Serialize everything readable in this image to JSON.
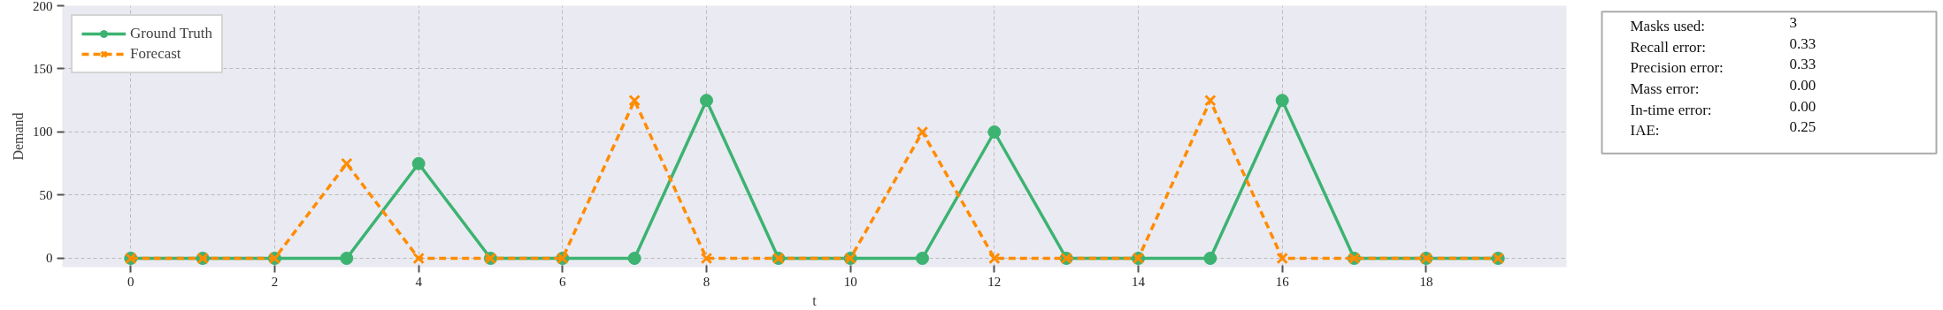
{
  "chart_data": {
    "type": "line",
    "xlabel": "t",
    "ylabel": "Demand",
    "x": [
      0,
      1,
      2,
      3,
      4,
      5,
      6,
      7,
      8,
      9,
      10,
      11,
      12,
      13,
      14,
      15,
      16,
      17,
      18,
      19
    ],
    "series": [
      {
        "name": "Ground Truth",
        "color": "#3cb371",
        "marker": "circle",
        "line_style": "solid",
        "values": [
          0,
          0,
          0,
          0,
          75,
          0,
          0,
          0,
          125,
          0,
          0,
          0,
          100,
          0,
          0,
          0,
          125,
          0,
          0,
          0
        ]
      },
      {
        "name": "Forecast",
        "color": "#ff8c00",
        "marker": "cross",
        "line_style": "dashed",
        "values": [
          0,
          0,
          0,
          75,
          0,
          0,
          0,
          125,
          0,
          0,
          0,
          100,
          0,
          0,
          0,
          125,
          0,
          0,
          0,
          0
        ]
      }
    ],
    "xlim": [
      -0.95,
      19.95
    ],
    "ylim": [
      -7,
      200
    ],
    "xticks": [
      0,
      2,
      4,
      6,
      8,
      10,
      12,
      14,
      16,
      18
    ],
    "yticks": [
      0,
      50,
      100,
      150,
      200
    ],
    "grid": true,
    "legend": "top left",
    "annotations": [
      "Masks used:",
      "3",
      "Recall error:",
      "0.33",
      "Precision error:",
      "0.33",
      "Mass error:",
      "0.00",
      "In-time error:",
      "0.00",
      "IAE:",
      "0.25"
    ]
  }
}
